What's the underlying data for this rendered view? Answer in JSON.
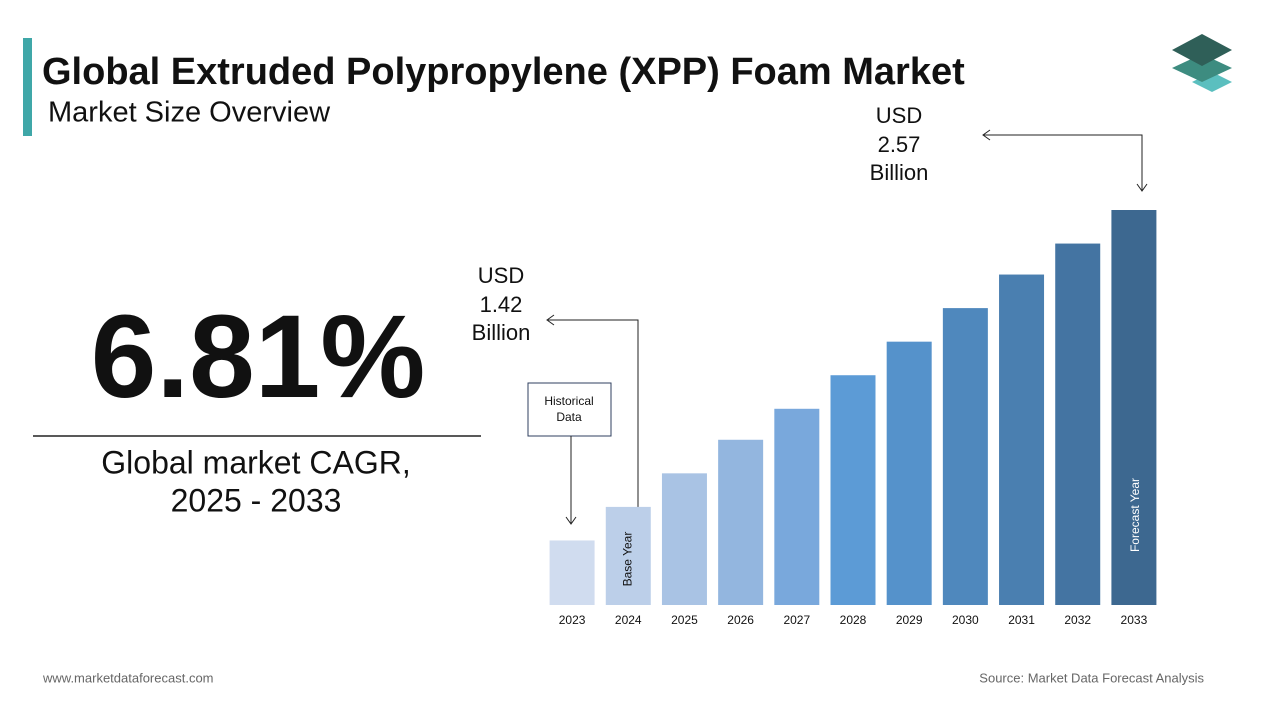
{
  "chart_data": {
    "type": "bar",
    "title": "Global Extruded Polypropylene (XPP) Foam Market",
    "subtitle": "Market Size Overview",
    "cagr": "6.81%",
    "cagr_label": [
      "Global market CAGR,",
      "2025 - 2033"
    ],
    "categories": [
      "2023",
      "2024",
      "2025",
      "2026",
      "2027",
      "2028",
      "2029",
      "2030",
      "2031",
      "2032",
      "2033"
    ],
    "values": [
      1.29,
      1.42,
      1.55,
      1.68,
      1.8,
      1.93,
      2.06,
      2.19,
      2.32,
      2.44,
      2.57
    ],
    "colors": [
      "#d0dcef",
      "#bccfe9",
      "#a9c3e4",
      "#93b6df",
      "#79a8dc",
      "#5c9bd6",
      "#5592cb",
      "#4f88bd",
      "#4a7fb0",
      "#4474a2",
      "#3d6890"
    ],
    "ylim": [
      1.04,
      2.57
    ],
    "annotations": [
      {
        "lines": [
          "USD",
          "1.42",
          "Billion"
        ]
      },
      {
        "lines": [
          "USD",
          "2.57",
          "Billion"
        ]
      }
    ],
    "historical_label": [
      "Historical",
      "Data"
    ],
    "base_year_label": "Base Year",
    "forecast_year_label": "Forecast Year",
    "footer_left": "www.marketdataforecast.com",
    "footer_right": "Source: Market Data Forecast Analysis"
  }
}
